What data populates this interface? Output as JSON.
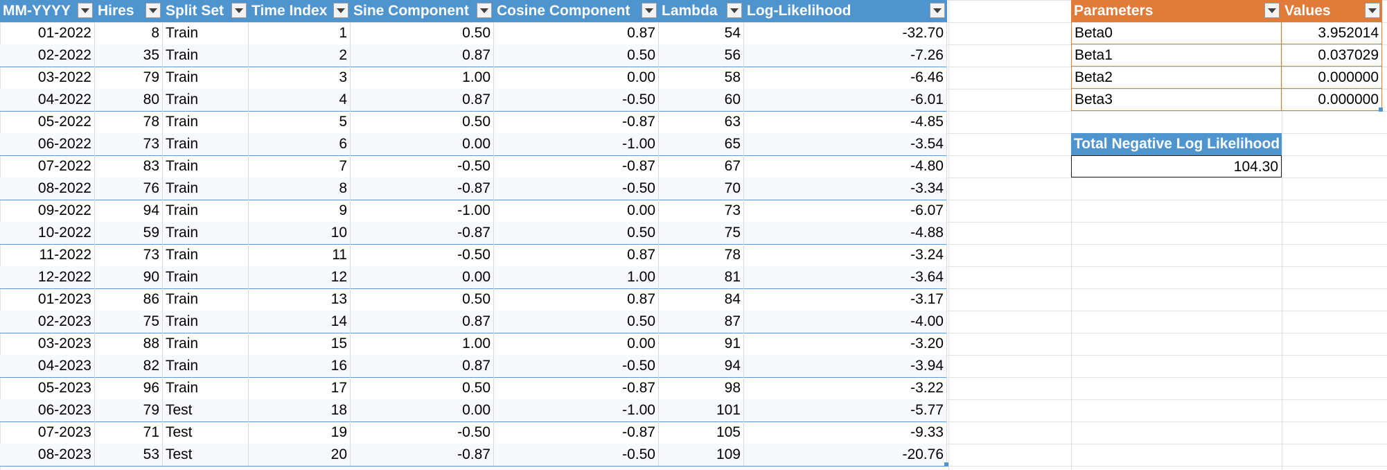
{
  "main_table": {
    "columns": [
      "MM-YYYY",
      "Hires",
      "Split Set",
      "Time Index",
      "Sine Component",
      "Cosine Component",
      "Lambda",
      "Log-Likelihood"
    ],
    "rows": [
      [
        "01-2022",
        "8",
        "Train",
        "1",
        "0.50",
        "0.87",
        "54",
        "-32.70"
      ],
      [
        "02-2022",
        "35",
        "Train",
        "2",
        "0.87",
        "0.50",
        "56",
        "-7.26"
      ],
      [
        "03-2022",
        "79",
        "Train",
        "3",
        "1.00",
        "0.00",
        "58",
        "-6.46"
      ],
      [
        "04-2022",
        "80",
        "Train",
        "4",
        "0.87",
        "-0.50",
        "60",
        "-6.01"
      ],
      [
        "05-2022",
        "78",
        "Train",
        "5",
        "0.50",
        "-0.87",
        "63",
        "-4.85"
      ],
      [
        "06-2022",
        "73",
        "Train",
        "6",
        "0.00",
        "-1.00",
        "65",
        "-3.54"
      ],
      [
        "07-2022",
        "83",
        "Train",
        "7",
        "-0.50",
        "-0.87",
        "67",
        "-4.80"
      ],
      [
        "08-2022",
        "76",
        "Train",
        "8",
        "-0.87",
        "-0.50",
        "70",
        "-3.34"
      ],
      [
        "09-2022",
        "94",
        "Train",
        "9",
        "-1.00",
        "0.00",
        "73",
        "-6.07"
      ],
      [
        "10-2022",
        "59",
        "Train",
        "10",
        "-0.87",
        "0.50",
        "75",
        "-4.88"
      ],
      [
        "11-2022",
        "73",
        "Train",
        "11",
        "-0.50",
        "0.87",
        "78",
        "-3.24"
      ],
      [
        "12-2022",
        "90",
        "Train",
        "12",
        "0.00",
        "1.00",
        "81",
        "-3.64"
      ],
      [
        "01-2023",
        "86",
        "Train",
        "13",
        "0.50",
        "0.87",
        "84",
        "-3.17"
      ],
      [
        "02-2023",
        "75",
        "Train",
        "14",
        "0.87",
        "0.50",
        "87",
        "-4.00"
      ],
      [
        "03-2023",
        "88",
        "Train",
        "15",
        "1.00",
        "0.00",
        "91",
        "-3.20"
      ],
      [
        "04-2023",
        "82",
        "Train",
        "16",
        "0.87",
        "-0.50",
        "94",
        "-3.94"
      ],
      [
        "05-2023",
        "96",
        "Train",
        "17",
        "0.50",
        "-0.87",
        "98",
        "-3.22"
      ],
      [
        "06-2023",
        "79",
        "Test",
        "18",
        "0.00",
        "-1.00",
        "101",
        "-5.77"
      ],
      [
        "07-2023",
        "71",
        "Test",
        "19",
        "-0.50",
        "-0.87",
        "105",
        "-9.33"
      ],
      [
        "08-2023",
        "53",
        "Test",
        "20",
        "-0.87",
        "-0.50",
        "109",
        "-20.76"
      ]
    ]
  },
  "params_table": {
    "columns": [
      "Parameters",
      "Values"
    ],
    "rows": [
      [
        "Beta0",
        "3.952014"
      ],
      [
        "Beta1",
        "0.037029"
      ],
      [
        "Beta2",
        "0.000000"
      ],
      [
        "Beta3",
        "0.000000"
      ]
    ]
  },
  "total_table": {
    "header": "Total Negative Log Likelihood",
    "value": "104.30"
  },
  "colors": {
    "blue_header": "#4e95d0",
    "orange_header": "#e07b39"
  }
}
